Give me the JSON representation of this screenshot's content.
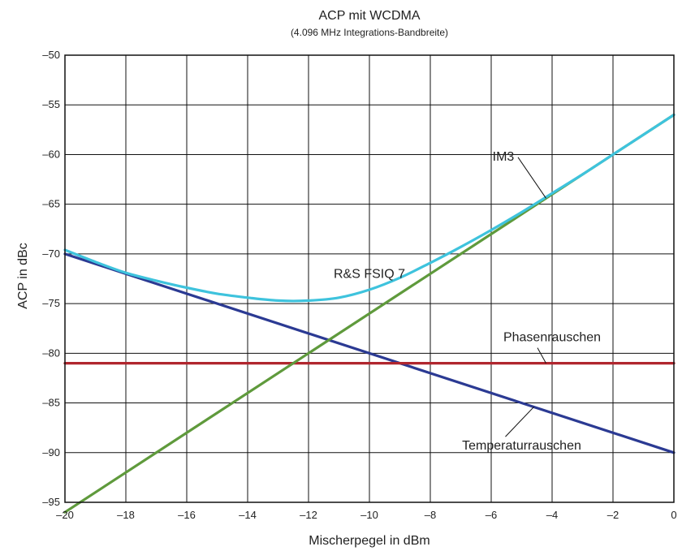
{
  "chart_data": {
    "type": "line",
    "title": "ACP mit WCDMA",
    "subtitle": "(4.096 MHz Integrations-Bandbreite)",
    "xlabel": "Mischerpegel in dBm",
    "ylabel": "ACP in dBc",
    "xlim": [
      -20,
      0
    ],
    "ylim": [
      -95,
      -50
    ],
    "grid": true,
    "xticks": [
      -20,
      -18,
      -16,
      -14,
      -12,
      -10,
      -8,
      -6,
      -4,
      -2,
      0
    ],
    "yticks": [
      -50,
      -55,
      -60,
      -65,
      -70,
      -75,
      -80,
      -85,
      -90,
      -95
    ],
    "xtick_labels": [
      "–20",
      "–18",
      "–16",
      "–14",
      "–12",
      "–10",
      "–8",
      "–6",
      "–4",
      "–2",
      "0"
    ],
    "ytick_labels": [
      "–50",
      "–55",
      "–60",
      "–65",
      "–70",
      "–75",
      "–80",
      "–85",
      "–90",
      "–95"
    ],
    "series": [
      {
        "name": "Temperaturrauschen",
        "color": "#2b3a93",
        "x": [
          -20,
          0
        ],
        "y": [
          -70,
          -90
        ]
      },
      {
        "name": "Phasenrauschen",
        "color": "#b0262e",
        "x": [
          -20,
          0
        ],
        "y": [
          -81,
          -81
        ]
      },
      {
        "name": "IM3",
        "color": "#5f9a3c",
        "x": [
          -20,
          0
        ],
        "y": [
          -96,
          -56
        ]
      },
      {
        "name": "R&S FSIQ 7",
        "color": "#3ec3dd",
        "x": [
          -20,
          -19,
          -18,
          -17,
          -16,
          -15,
          -14,
          -13,
          -12,
          -11,
          -10,
          -9,
          -8,
          -7,
          -6,
          -5,
          -4,
          -3,
          -2,
          -1,
          0
        ],
        "y": [
          -69.6,
          -70.8,
          -71.9,
          -72.7,
          -73.4,
          -74.0,
          -74.4,
          -74.7,
          -74.7,
          -74.4,
          -73.6,
          -72.4,
          -70.9,
          -69.3,
          -67.6,
          -65.8,
          -63.9,
          -62.0,
          -60.0,
          -58.0,
          -56.0
        ]
      }
    ],
    "annotations": [
      {
        "text": "IM3",
        "series": "IM3",
        "at_x": -4.2,
        "label_x": -5.6,
        "label_y": -60.6
      },
      {
        "text": "R&S FSIQ 7",
        "series": "R&S FSIQ 7",
        "label_x": -10.0,
        "label_y": -72.4
      },
      {
        "text": "Phasenrauschen",
        "series": "Phasenrauschen",
        "at_x": -4.2,
        "label_x": -4.0,
        "label_y": -78.8
      },
      {
        "text": "Temperaturrauschen",
        "series": "Temperaturrauschen",
        "at_x": -4.6,
        "label_x": -5.0,
        "label_y": -89.7
      }
    ]
  }
}
